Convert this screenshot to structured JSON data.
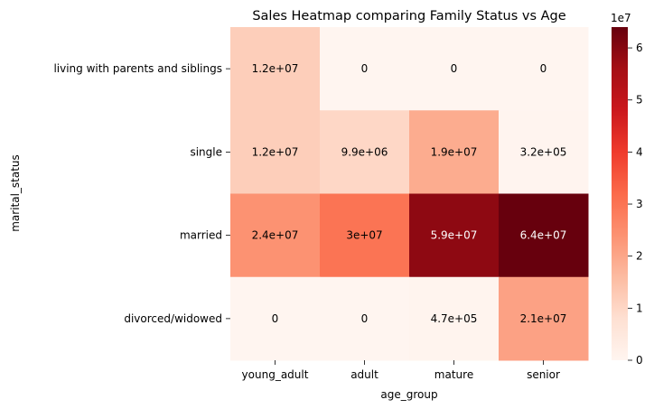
{
  "chart_data": {
    "type": "heatmap",
    "title": "Sales Heatmap comparing Family Status vs Age",
    "xlabel": "age_group",
    "ylabel": "marital_status",
    "x_categories": [
      "young_adult",
      "adult",
      "mature",
      "senior"
    ],
    "y_categories": [
      "living with parents and siblings",
      "single",
      "married",
      "divorced/widowed"
    ],
    "values": [
      [
        12000000,
        0,
        0,
        0
      ],
      [
        12000000,
        9900000,
        19000000,
        320000
      ],
      [
        24000000,
        30000000,
        59000000,
        64000000
      ],
      [
        0,
        0,
        470000,
        21000000
      ]
    ],
    "cell_labels": [
      [
        "1.2e+07",
        "0",
        "0",
        "0"
      ],
      [
        "1.2e+07",
        "9.9e+06",
        "1.9e+07",
        "3.2e+05"
      ],
      [
        "2.4e+07",
        "3e+07",
        "5.9e+07",
        "6.4e+07"
      ],
      [
        "0",
        "0",
        "4.7e+05",
        "2.1e+07"
      ]
    ],
    "colormap": "Reds",
    "vmin": 0,
    "vmax": 64000000,
    "colorbar": {
      "ticks": [
        "0",
        "1",
        "2",
        "3",
        "4",
        "5",
        "6"
      ],
      "tick_values": [
        0,
        10000000,
        20000000,
        30000000,
        40000000,
        50000000,
        60000000
      ],
      "offset_label": "1e7"
    }
  }
}
